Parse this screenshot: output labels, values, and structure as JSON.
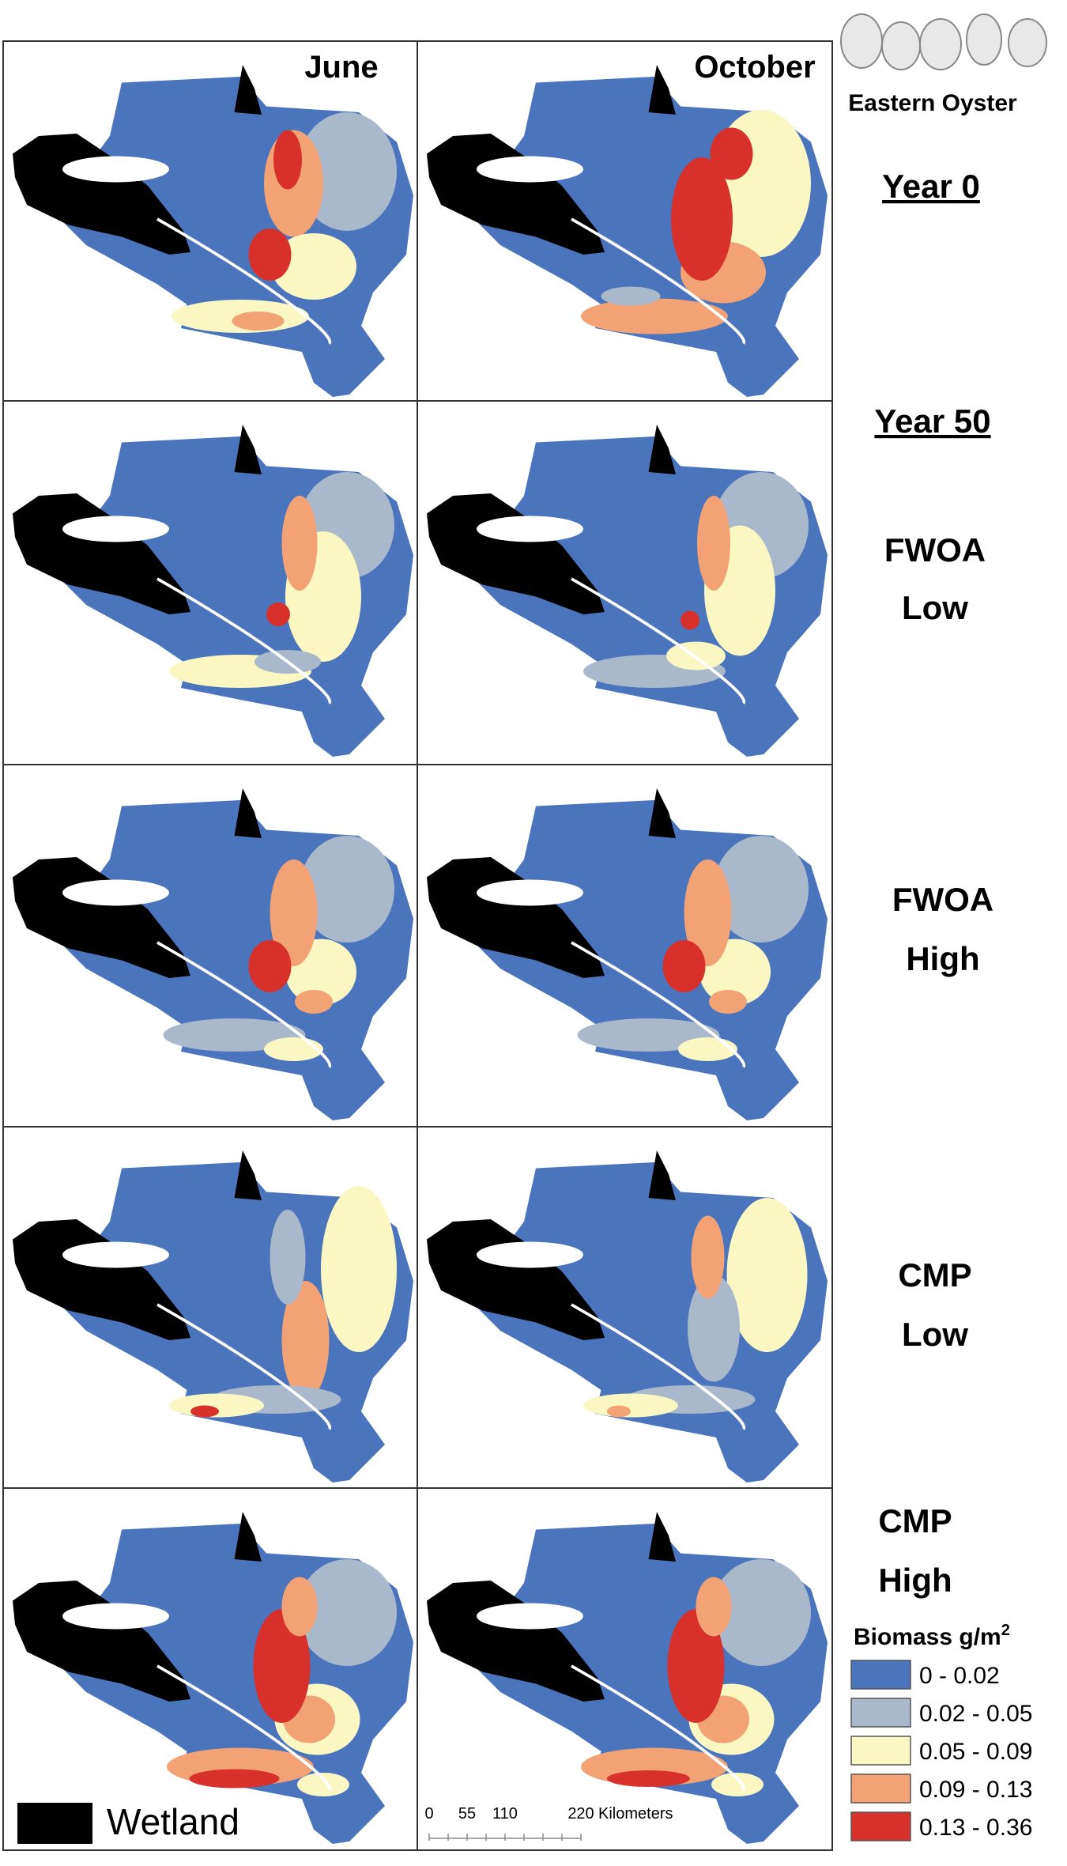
{
  "header": {
    "species": "Eastern Oyster",
    "columns": [
      "June",
      "October"
    ]
  },
  "periods": [
    "Year 0",
    "Year 50"
  ],
  "scenarios": [
    [
      "FWOA",
      "Low"
    ],
    [
      "FWOA",
      "High"
    ],
    [
      "CMP",
      "Low"
    ],
    [
      "CMP",
      "High"
    ]
  ],
  "legend": {
    "title": "Biomass g/m",
    "title_sup": "2",
    "items": [
      {
        "label": "0 - 0.02",
        "color": "#4a74bc"
      },
      {
        "label": "0.02 - 0.05",
        "color": "#a9b9cb"
      },
      {
        "label": "0.05 - 0.09",
        "color": "#fbf7c2"
      },
      {
        "label": "0.09 - 0.13",
        "color": "#f2a274"
      },
      {
        "label": "0.13 - 0.36",
        "color": "#d8302b"
      }
    ]
  },
  "wetland": "Wetland",
  "scale_bar": {
    "ticks": [
      "0",
      "55",
      "110",
      "220"
    ],
    "unit": "Kilometers"
  }
}
